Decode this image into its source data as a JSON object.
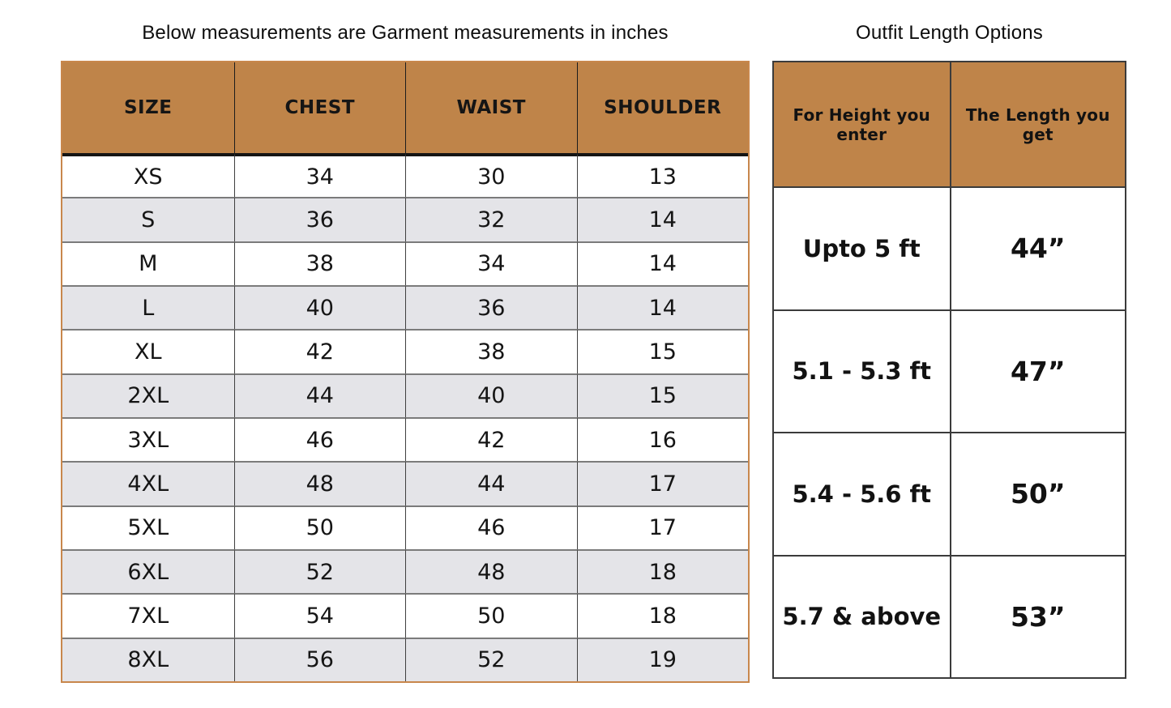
{
  "chart_data": [
    {
      "type": "table",
      "title": "Below measurements are Garment measurements in inches",
      "columns": [
        "SIZE",
        "CHEST",
        "WAIST",
        "SHOULDER"
      ],
      "rows": [
        [
          "XS",
          34,
          30,
          13
        ],
        [
          "S",
          36,
          32,
          14
        ],
        [
          "M",
          38,
          34,
          14
        ],
        [
          "L",
          40,
          36,
          14
        ],
        [
          "XL",
          42,
          38,
          15
        ],
        [
          "2XL",
          44,
          40,
          15
        ],
        [
          "3XL",
          46,
          42,
          16
        ],
        [
          "4XL",
          48,
          44,
          17
        ],
        [
          "5XL",
          50,
          46,
          17
        ],
        [
          "6XL",
          52,
          48,
          18
        ],
        [
          "7XL",
          54,
          50,
          18
        ],
        [
          "8XL",
          56,
          52,
          19
        ]
      ],
      "layout": "alternating row fill white / light gray, brown header band"
    },
    {
      "type": "table",
      "title": "Outfit Length Options",
      "columns": [
        "For Height you enter",
        "The Length you get"
      ],
      "rows": [
        [
          "Upto 5 ft",
          "44”"
        ],
        [
          "5.1 - 5.3 ft",
          "47”"
        ],
        [
          "5.4 - 5.6 ft",
          "50”"
        ],
        [
          "5.7 & above",
          "53”"
        ]
      ],
      "layout": "white body cells, brown header band"
    }
  ],
  "colors": {
    "header_fill": "#BF8449",
    "alt_row_fill": "#E4E4E8",
    "left_table_border": "#C8874C",
    "grid_line_v": "#3f3f3f",
    "grid_line_h": "#7b7b7b",
    "thick_line": "#141414",
    "right_line": "#3b3b3b"
  }
}
